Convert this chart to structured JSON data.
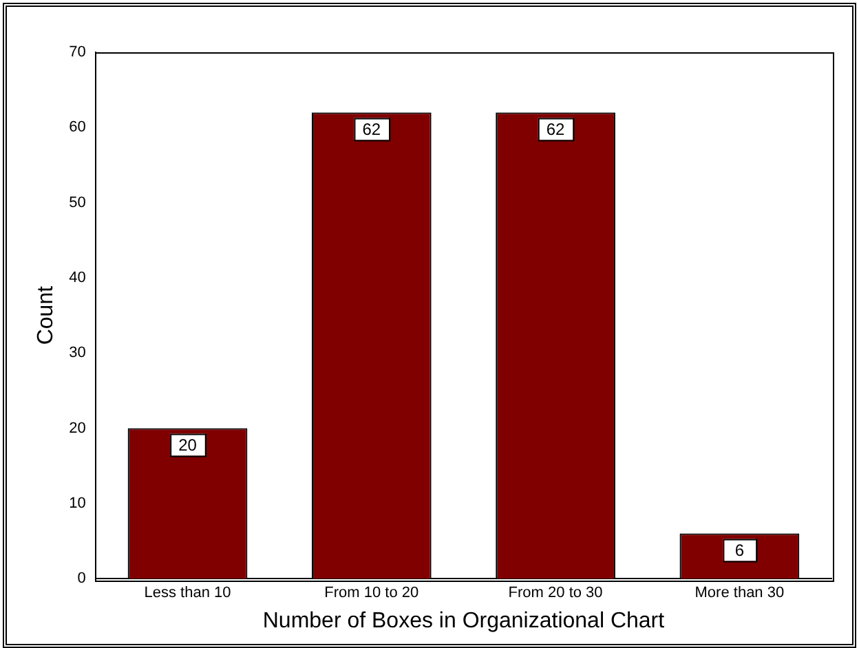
{
  "chart_data": {
    "type": "bar",
    "xlabel": "Number of Boxes in Organizational Chart",
    "ylabel": "Count",
    "categories": [
      "Less than 10",
      "From 10 to 20",
      "From 20 to 30",
      "More than 30"
    ],
    "values": [
      20,
      62,
      62,
      6
    ],
    "color": "#800000",
    "ylim": [
      0,
      70
    ],
    "yticks": [
      0,
      10,
      20,
      30,
      40,
      50,
      60,
      70
    ],
    "grid": false,
    "legend": false,
    "data_labels": true
  }
}
